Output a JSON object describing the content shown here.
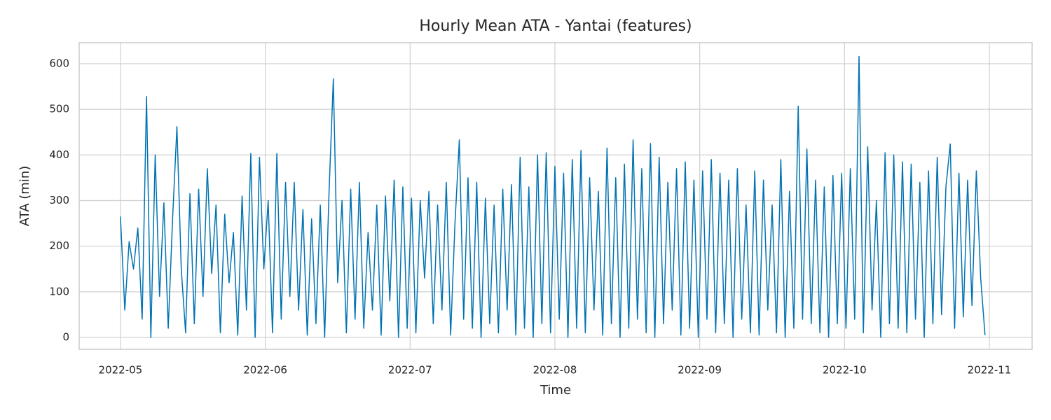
{
  "chart_data": {
    "type": "line",
    "title": "Hourly Mean ATA - Yantai (features)",
    "xlabel": "Time",
    "ylabel": "ATA (min)",
    "color": "#0173b2",
    "grid": true,
    "xlim": [
      -0.285,
      6.295
    ],
    "xticks": [
      {
        "value": 0,
        "label": "2022-05"
      },
      {
        "value": 1,
        "label": "2022-06"
      },
      {
        "value": 2,
        "label": "2022-07"
      },
      {
        "value": 3,
        "label": "2022-08"
      },
      {
        "value": 4,
        "label": "2022-09"
      },
      {
        "value": 5,
        "label": "2022-10"
      },
      {
        "value": 6,
        "label": "2022-11"
      }
    ],
    "ylim": [
      -26,
      646
    ],
    "yticks": [
      0,
      100,
      200,
      300,
      400,
      500,
      600
    ],
    "x": [
      0,
      0.03,
      0.06,
      0.09,
      0.12,
      0.15,
      0.18,
      0.21,
      0.24,
      0.27,
      0.3,
      0.33,
      0.36,
      0.39,
      0.42,
      0.45,
      0.48,
      0.51,
      0.54,
      0.57,
      0.6,
      0.63,
      0.66,
      0.69,
      0.72,
      0.75,
      0.78,
      0.81,
      0.84,
      0.87,
      0.9,
      0.93,
      0.96,
      0.99,
      1.02,
      1.05,
      1.08,
      1.11,
      1.14,
      1.17,
      1.2,
      1.23,
      1.26,
      1.29,
      1.32,
      1.35,
      1.38,
      1.41,
      1.44,
      1.47,
      1.5,
      1.53,
      1.56,
      1.59,
      1.62,
      1.65,
      1.68,
      1.71,
      1.74,
      1.77,
      1.8,
      1.83,
      1.86,
      1.89,
      1.92,
      1.95,
      1.98,
      2.01,
      2.04,
      2.07,
      2.1,
      2.13,
      2.16,
      2.19,
      2.22,
      2.25,
      2.28,
      2.31,
      2.34,
      2.37,
      2.4,
      2.43,
      2.46,
      2.49,
      2.52,
      2.55,
      2.58,
      2.61,
      2.64,
      2.67,
      2.7,
      2.73,
      2.76,
      2.79,
      2.82,
      2.85,
      2.88,
      2.91,
      2.94,
      2.97,
      3,
      3.03,
      3.06,
      3.09,
      3.12,
      3.15,
      3.18,
      3.21,
      3.24,
      3.27,
      3.3,
      3.33,
      3.36,
      3.39,
      3.42,
      3.45,
      3.48,
      3.51,
      3.54,
      3.57,
      3.6,
      3.63,
      3.66,
      3.69,
      3.72,
      3.75,
      3.78,
      3.81,
      3.84,
      3.87,
      3.9,
      3.93,
      3.96,
      3.99,
      4.02,
      4.05,
      4.08,
      4.11,
      4.14,
      4.17,
      4.2,
      4.23,
      4.26,
      4.29,
      4.32,
      4.35,
      4.38,
      4.41,
      4.44,
      4.47,
      4.5,
      4.53,
      4.56,
      4.59,
      4.62,
      4.65,
      4.68,
      4.71,
      4.74,
      4.77,
      4.8,
      4.83,
      4.86,
      4.89,
      4.92,
      4.95,
      4.98,
      5.01,
      5.04,
      5.07,
      5.1,
      5.13,
      5.16,
      5.19,
      5.22,
      5.25,
      5.28,
      5.31,
      5.34,
      5.37,
      5.4,
      5.43,
      5.46,
      5.49,
      5.52,
      5.55,
      5.58,
      5.61,
      5.64,
      5.67,
      5.7,
      5.73,
      5.76,
      5.79,
      5.82,
      5.85,
      5.88,
      5.91,
      5.94,
      5.97
    ],
    "values": [
      265,
      60,
      210,
      150,
      240,
      40,
      528,
      0,
      400,
      90,
      295,
      20,
      260,
      462,
      150,
      10,
      315,
      30,
      325,
      90,
      370,
      140,
      290,
      10,
      270,
      120,
      230,
      5,
      310,
      60,
      403,
      0,
      395,
      150,
      300,
      10,
      403,
      40,
      340,
      90,
      340,
      60,
      280,
      5,
      260,
      30,
      290,
      0,
      315,
      567,
      120,
      300,
      10,
      325,
      40,
      340,
      20,
      230,
      60,
      290,
      5,
      310,
      80,
      345,
      0,
      330,
      20,
      305,
      10,
      300,
      130,
      320,
      30,
      290,
      60,
      340,
      5,
      250,
      433,
      40,
      350,
      20,
      340,
      0,
      305,
      30,
      290,
      10,
      325,
      60,
      335,
      5,
      395,
      20,
      330,
      0,
      400,
      30,
      405,
      10,
      375,
      40,
      360,
      0,
      390,
      20,
      410,
      10,
      350,
      60,
      320,
      5,
      415,
      30,
      350,
      0,
      380,
      20,
      433,
      40,
      370,
      10,
      425,
      0,
      395,
      30,
      340,
      60,
      370,
      5,
      385,
      20,
      345,
      0,
      365,
      40,
      390,
      10,
      360,
      30,
      345,
      0,
      370,
      40,
      290,
      10,
      365,
      5,
      345,
      60,
      290,
      10,
      390,
      0,
      320,
      20,
      507,
      40,
      413,
      30,
      345,
      10,
      330,
      0,
      355,
      30,
      360,
      20,
      370,
      40,
      616,
      10,
      418,
      60,
      300,
      0,
      405,
      30,
      400,
      20,
      385,
      10,
      380,
      40,
      340,
      0,
      365,
      30,
      395,
      50,
      330,
      424,
      20,
      360,
      45,
      345,
      70,
      365,
      130,
      5
    ]
  }
}
